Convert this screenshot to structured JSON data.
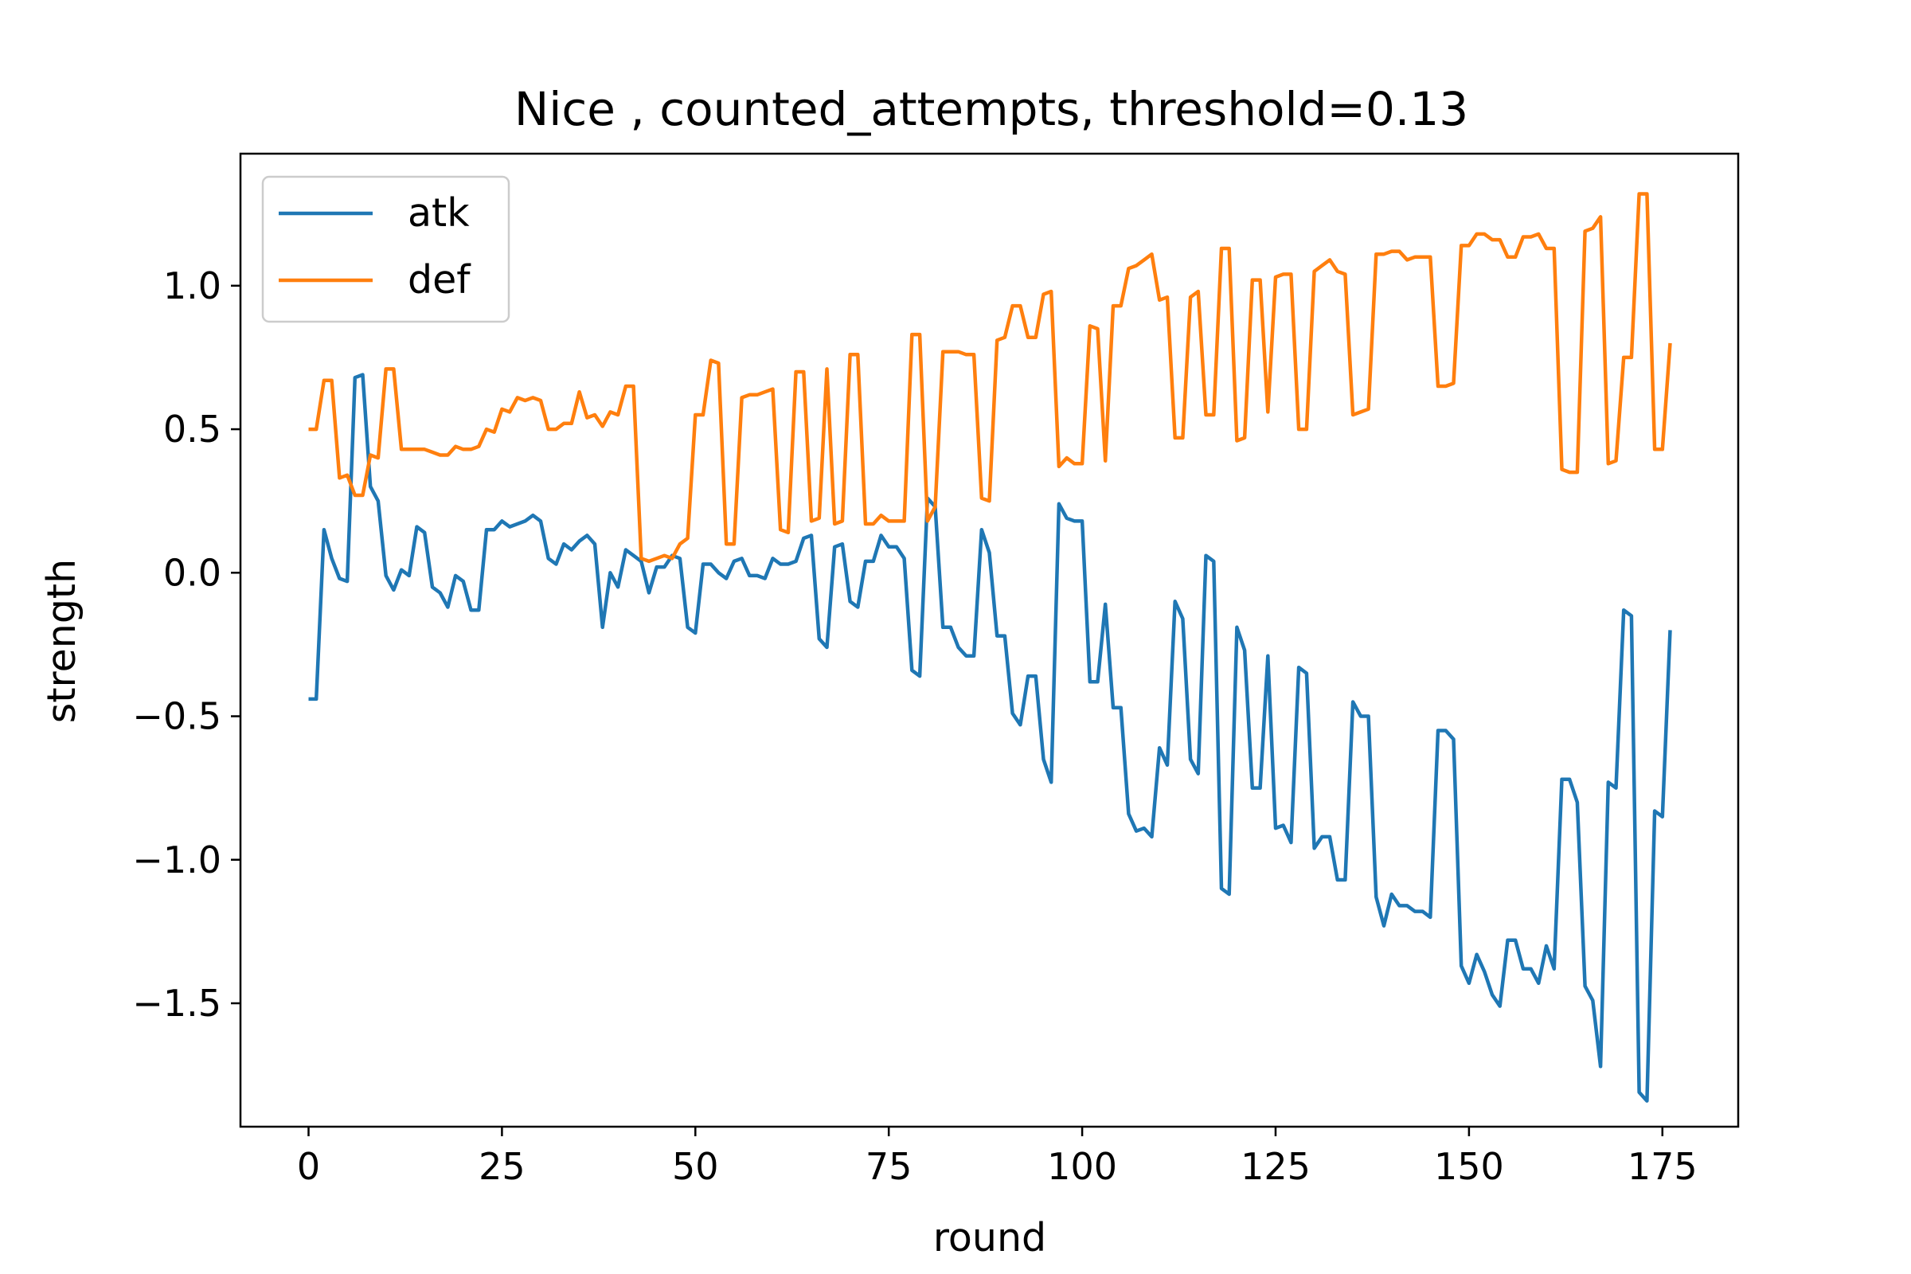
{
  "chart_data": {
    "type": "line",
    "title": "Nice , counted_attempts, threshold=0.13",
    "xlabel": "round",
    "ylabel": "strength",
    "xlim": [
      -8.8,
      184.8
    ],
    "ylim": [
      -1.93,
      1.46
    ],
    "xticks": [
      0,
      25,
      50,
      75,
      100,
      125,
      150,
      175
    ],
    "xtick_labels": [
      "0",
      "25",
      "50",
      "75",
      "100",
      "125",
      "150",
      "175"
    ],
    "yticks": [
      -1.5,
      -1.0,
      -0.5,
      0.0,
      0.5,
      1.0
    ],
    "ytick_labels": [
      "−1.5",
      "−1.0",
      "−0.5",
      "0.0",
      "0.5",
      "1.0"
    ],
    "legend_position": "upper-left",
    "grid": false,
    "series": [
      {
        "name": "atk",
        "color": "#1f77b4",
        "values": [
          -0.44,
          -0.44,
          0.15,
          0.05,
          -0.02,
          -0.03,
          0.68,
          0.69,
          0.3,
          0.25,
          -0.01,
          -0.06,
          0.01,
          -0.01,
          0.16,
          0.14,
          -0.05,
          -0.07,
          -0.12,
          -0.01,
          -0.03,
          -0.13,
          -0.13,
          0.15,
          0.15,
          0.18,
          0.16,
          0.17,
          0.18,
          0.2,
          0.18,
          0.05,
          0.03,
          0.1,
          0.08,
          0.11,
          0.13,
          0.1,
          -0.19,
          0.0,
          -0.05,
          0.08,
          0.06,
          0.04,
          -0.07,
          0.02,
          0.02,
          0.06,
          0.05,
          -0.19,
          -0.21,
          0.03,
          0.03,
          0.0,
          -0.02,
          0.04,
          0.05,
          -0.01,
          -0.01,
          -0.02,
          0.05,
          0.03,
          0.03,
          0.04,
          0.12,
          0.13,
          -0.23,
          -0.26,
          0.09,
          0.1,
          -0.1,
          -0.12,
          0.04,
          0.04,
          0.13,
          0.09,
          0.09,
          0.05,
          -0.34,
          -0.36,
          0.26,
          0.23,
          -0.19,
          -0.19,
          -0.26,
          -0.29,
          -0.29,
          0.15,
          0.07,
          -0.22,
          -0.22,
          -0.49,
          -0.53,
          -0.36,
          -0.36,
          -0.65,
          -0.73,
          0.24,
          0.19,
          0.18,
          0.18,
          -0.38,
          -0.38,
          -0.11,
          -0.47,
          -0.47,
          -0.84,
          -0.9,
          -0.89,
          -0.92,
          -0.61,
          -0.67,
          -0.1,
          -0.16,
          -0.65,
          -0.7,
          0.06,
          0.04,
          -1.1,
          -1.12,
          -0.19,
          -0.27,
          -0.75,
          -0.75,
          -0.29,
          -0.89,
          -0.88,
          -0.94,
          -0.33,
          -0.35,
          -0.96,
          -0.92,
          -0.92,
          -1.07,
          -1.07,
          -0.45,
          -0.5,
          -0.5,
          -1.13,
          -1.23,
          -1.12,
          -1.16,
          -1.16,
          -1.18,
          -1.18,
          -1.2,
          -0.55,
          -0.55,
          -0.58,
          -1.37,
          -1.43,
          -1.33,
          -1.39,
          -1.47,
          -1.51,
          -1.28,
          -1.28,
          -1.38,
          -1.38,
          -1.43,
          -1.3,
          -1.38,
          -0.72,
          -0.72,
          -0.8,
          -1.44,
          -1.49,
          -1.72,
          -0.73,
          -0.75,
          -0.13,
          -0.15,
          -1.81,
          -1.84,
          -0.83,
          -0.85,
          -0.2
        ]
      },
      {
        "name": "def",
        "color": "#ff7f0e",
        "values": [
          0.5,
          0.5,
          0.67,
          0.67,
          0.33,
          0.34,
          0.27,
          0.27,
          0.41,
          0.4,
          0.71,
          0.71,
          0.43,
          0.43,
          0.43,
          0.43,
          0.42,
          0.41,
          0.41,
          0.44,
          0.43,
          0.43,
          0.44,
          0.5,
          0.49,
          0.57,
          0.56,
          0.61,
          0.6,
          0.61,
          0.6,
          0.5,
          0.5,
          0.52,
          0.52,
          0.63,
          0.54,
          0.55,
          0.51,
          0.56,
          0.55,
          0.65,
          0.65,
          0.05,
          0.04,
          0.05,
          0.06,
          0.05,
          0.1,
          0.12,
          0.55,
          0.55,
          0.74,
          0.73,
          0.1,
          0.1,
          0.61,
          0.62,
          0.62,
          0.63,
          0.64,
          0.15,
          0.14,
          0.7,
          0.7,
          0.18,
          0.19,
          0.71,
          0.17,
          0.18,
          0.76,
          0.76,
          0.17,
          0.17,
          0.2,
          0.18,
          0.18,
          0.18,
          0.83,
          0.83,
          0.18,
          0.23,
          0.77,
          0.77,
          0.77,
          0.76,
          0.76,
          0.26,
          0.25,
          0.81,
          0.82,
          0.93,
          0.93,
          0.82,
          0.82,
          0.97,
          0.98,
          0.37,
          0.4,
          0.38,
          0.38,
          0.86,
          0.85,
          0.39,
          0.93,
          0.93,
          1.06,
          1.07,
          1.09,
          1.11,
          0.95,
          0.96,
          0.47,
          0.47,
          0.96,
          0.98,
          0.55,
          0.55,
          1.13,
          1.13,
          0.46,
          0.47,
          1.02,
          1.02,
          0.56,
          1.03,
          1.04,
          1.04,
          0.5,
          0.5,
          1.05,
          1.07,
          1.09,
          1.05,
          1.04,
          0.55,
          0.56,
          0.57,
          1.11,
          1.11,
          1.12,
          1.12,
          1.09,
          1.1,
          1.1,
          1.1,
          0.65,
          0.65,
          0.66,
          1.14,
          1.14,
          1.18,
          1.18,
          1.16,
          1.16,
          1.1,
          1.1,
          1.17,
          1.17,
          1.18,
          1.13,
          1.13,
          0.36,
          0.35,
          0.35,
          1.19,
          1.2,
          1.24,
          0.38,
          0.39,
          0.75,
          0.75,
          1.32,
          1.32,
          0.43,
          0.43,
          0.8
        ]
      }
    ]
  }
}
